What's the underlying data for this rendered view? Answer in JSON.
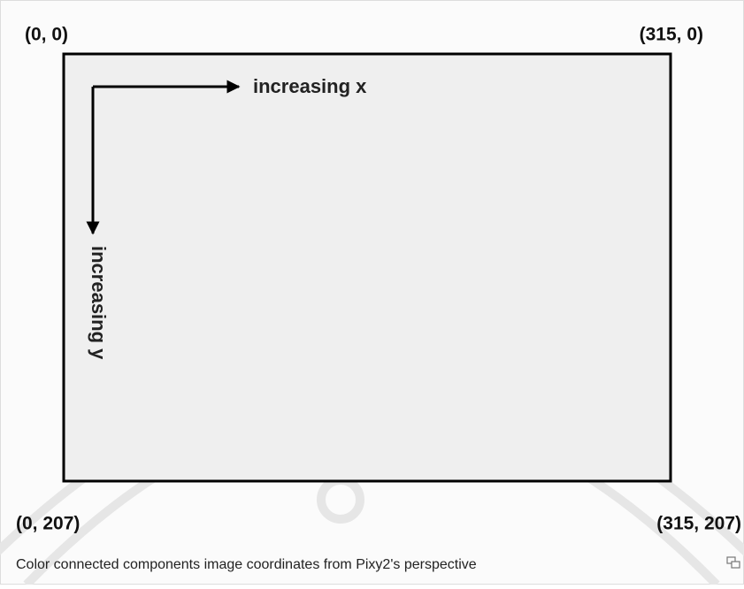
{
  "diagram": {
    "corners": {
      "top_left": "(0, 0)",
      "top_right": "(315, 0)",
      "bottom_left": "(0, 207)",
      "bottom_right": "(315, 207)"
    },
    "axes": {
      "x_label": "increasing x",
      "y_label": "increasing y"
    },
    "caption": "Color connected components image coordinates from Pixy2's perspective"
  }
}
